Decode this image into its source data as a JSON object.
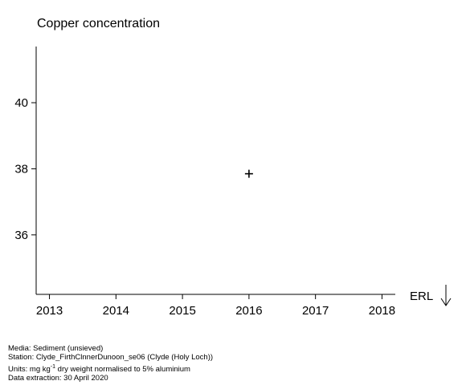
{
  "chart_data": {
    "type": "scatter",
    "title": "Copper concentration",
    "xlabel": "",
    "ylabel": "",
    "x_ticks": [
      2013,
      2014,
      2015,
      2016,
      2017,
      2018
    ],
    "y_ticks": [
      36,
      38,
      40
    ],
    "xlim": [
      2012.8,
      2018.2
    ],
    "ylim": [
      34.2,
      41.7
    ],
    "grid": false,
    "marker": "+",
    "points": [
      {
        "x": 2016,
        "y": 37.85
      }
    ],
    "threshold_marker": {
      "label": "ERL",
      "direction": "below"
    }
  },
  "footnotes": {
    "media": "Media: Sediment (unsieved)",
    "station": "Station: Clyde_FirthClnnerDunoon_se06 (Clyde (Holy Loch))",
    "units_prefix": "Units:  mg kg",
    "units_sup": "-1",
    "units_suffix": " dry weight normalised to 5% aluminium",
    "extraction": "Data extraction: 30 April 2020"
  }
}
